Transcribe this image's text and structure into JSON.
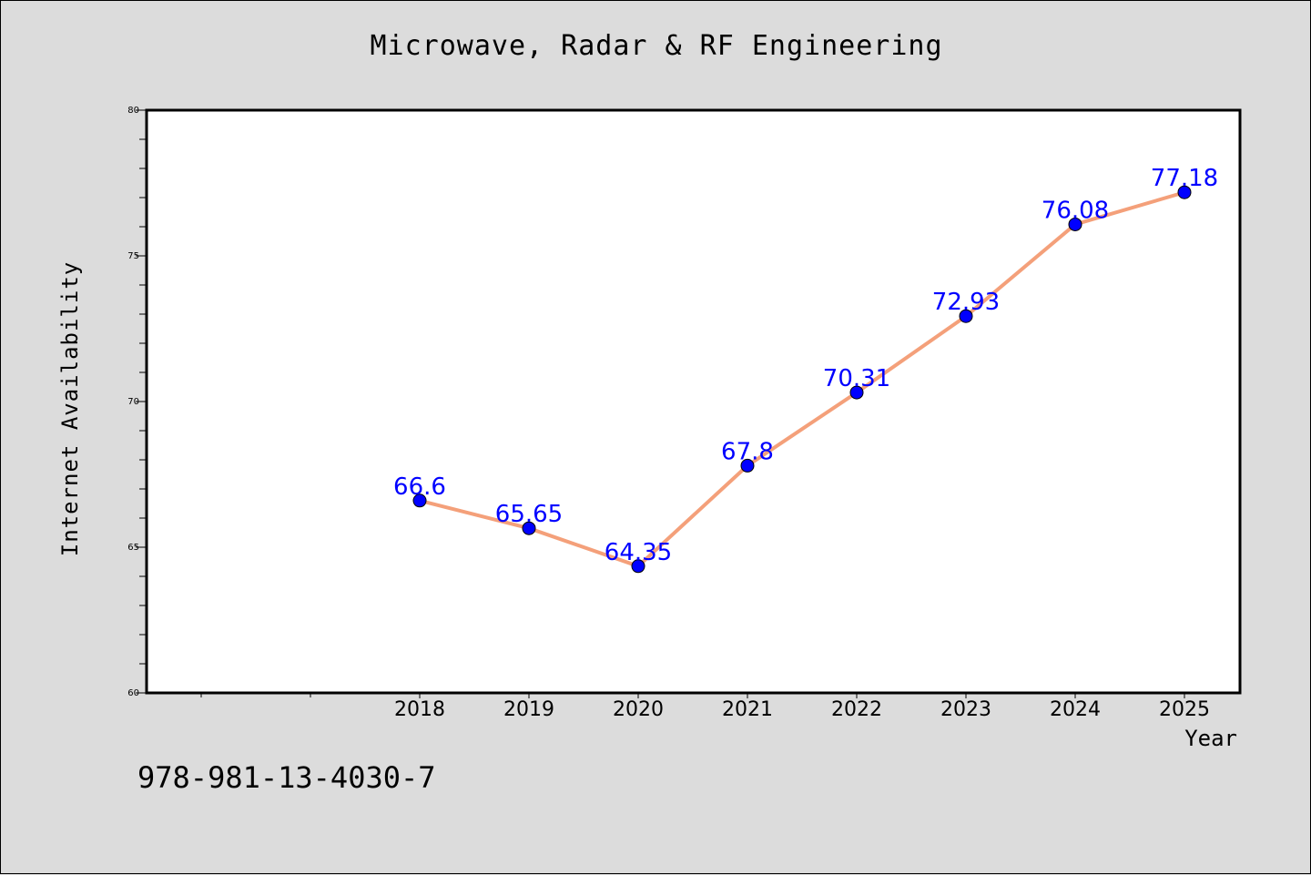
{
  "chart_data": {
    "type": "line",
    "title": "Microwave, Radar & RF Engineering",
    "xlabel": "Year",
    "ylabel": "Internet Availability",
    "categories": [
      "2018",
      "2019",
      "2020",
      "2021",
      "2022",
      "2023",
      "2024",
      "2025"
    ],
    "values": [
      66.6,
      65.65,
      64.35,
      67.8,
      70.31,
      72.93,
      76.08,
      77.18
    ],
    "data_labels": [
      "66.6",
      "65.65",
      "64.35",
      "67.8",
      "70.31",
      "72.93",
      "76.08",
      "77.18"
    ],
    "ylim": [
      60,
      80
    ],
    "y_ticks": [
      "60",
      "65",
      "70",
      "75",
      "80"
    ],
    "grid": false,
    "colors": {
      "line": "#f4a07a",
      "marker": "#0000ff",
      "data_label": "#0000ff",
      "background": "#dcdcdc",
      "plot_background": "#ffffff"
    }
  },
  "footer": {
    "isbn": "978-981-13-4030-7"
  }
}
